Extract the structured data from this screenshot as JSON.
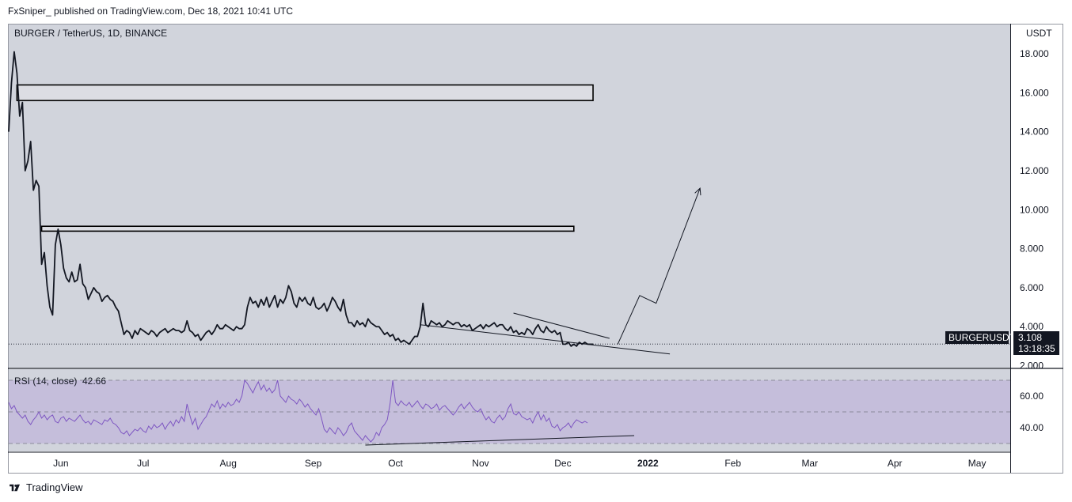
{
  "header": {
    "published_line": "FxSniper_ published on TradingView.com, Dec 18, 2021 10:41 UTC"
  },
  "footer": {
    "brand": "TradingView"
  },
  "colors": {
    "background": "#d1d4dc",
    "price_line": "#131722",
    "rsi_line": "#7e57c2",
    "rsi_band": "#c5bedb",
    "label_bg": "#131722"
  },
  "chart_data": [
    {
      "type": "line",
      "title": "BURGER / TetherUS, 1D, BINANCE",
      "symbol": "BURGERUSDT",
      "axis_unit": "USDT",
      "ylim": [
        1.9,
        19.5
      ],
      "y_ticks": [
        "18.000",
        "16.000",
        "14.000",
        "12.000",
        "10.000",
        "8.000",
        "6.000",
        "4.000",
        "2.000"
      ],
      "y_tick_values": [
        18,
        16,
        14,
        12,
        10,
        8,
        6,
        4,
        2
      ],
      "last_price": "3.108",
      "last_price_value": 3.108,
      "countdown": "13:18:35",
      "series": [
        {
          "values": [
            14.0,
            16.5,
            18.1,
            17.0,
            14.8,
            15.5,
            12.0,
            12.5,
            13.5,
            11.0,
            11.5,
            11.2,
            7.2,
            7.8,
            6.1,
            5.0,
            4.6,
            8.2,
            9.0,
            8.2,
            7.0,
            6.5,
            6.3,
            6.8,
            6.3,
            6.4,
            7.2,
            6.2,
            6.0,
            5.4,
            5.7,
            6.0,
            5.8,
            5.7,
            5.3,
            5.5,
            5.6,
            5.4,
            5.3,
            5.0,
            4.8,
            4.2,
            3.6,
            3.8,
            3.7,
            3.4,
            3.8,
            3.6,
            3.9,
            3.8,
            3.7,
            3.6,
            3.8,
            3.7,
            3.5,
            3.7,
            3.8,
            3.9,
            3.7,
            3.8,
            3.9,
            3.8,
            3.8,
            3.7,
            3.8,
            4.3,
            3.8,
            3.7,
            3.5,
            3.6,
            3.3,
            3.5,
            3.7,
            3.8,
            3.6,
            3.8,
            4.1,
            3.9,
            3.9,
            4.1,
            4.0,
            3.9,
            3.8,
            4.0,
            3.9,
            3.9,
            4.1,
            5.0,
            5.5,
            5.2,
            5.3,
            5.0,
            5.4,
            5.1,
            5.5,
            5.0,
            5.3,
            5.6,
            5.0,
            5.4,
            5.2,
            5.5,
            6.1,
            5.8,
            5.2,
            5.0,
            5.5,
            5.3,
            5.5,
            5.2,
            5.1,
            5.5,
            5.0,
            4.9,
            5.0,
            5.2,
            4.8,
            5.1,
            5.5,
            5.3,
            5.0,
            4.8,
            5.4,
            4.6,
            4.2,
            4.2,
            4.0,
            4.3,
            4.1,
            4.2,
            4.0,
            4.4,
            4.2,
            4.1,
            4.0,
            4.0,
            3.8,
            3.6,
            3.7,
            3.5,
            3.6,
            3.3,
            3.4,
            3.2,
            3.3,
            3.2,
            3.1,
            3.3,
            3.5,
            3.5,
            4.0,
            5.2,
            4.1,
            4.0,
            4.3,
            4.2,
            4.1,
            4.2,
            4.0,
            4.1,
            4.3,
            4.2,
            4.1,
            4.2,
            4.2,
            4.0,
            4.1,
            4.0,
            4.1,
            3.8,
            3.9,
            4.0,
            4.1,
            3.9,
            4.1,
            4.0,
            4.1,
            4.2,
            4.0,
            4.1,
            4.1,
            3.9,
            3.8,
            4.0,
            3.7,
            3.8,
            3.6,
            3.7,
            3.6,
            3.9,
            3.8,
            3.6,
            3.9,
            4.1,
            3.8,
            3.7,
            4.0,
            3.8,
            3.7,
            3.8,
            3.6,
            3.7,
            3.1,
            3.1,
            3.2,
            3.0,
            3.1,
            3.0,
            3.2,
            3.1,
            3.2,
            3.1,
            3.1,
            3.1
          ]
        }
      ],
      "x_tick_labels": [
        "Jun",
        "Jul",
        "Aug",
        "Sep",
        "Oct",
        "Nov",
        "Dec",
        "2022",
        "Feb",
        "Mar",
        "Apr",
        "May"
      ],
      "x_tick_days": [
        19,
        49,
        80,
        111,
        141,
        172,
        202,
        233,
        264,
        292,
        323,
        353
      ],
      "annotations": {
        "boxes": [
          {
            "day_start": 3,
            "day_end": 213,
            "price_low": 15.6,
            "price_high": 16.4
          },
          {
            "day_start": 12,
            "day_end": 206,
            "price_low": 8.9,
            "price_high": 9.15
          }
        ],
        "trendlines": [
          {
            "from": [
              150,
              4.1
            ],
            "to": [
              241,
              2.6
            ]
          },
          {
            "from": [
              184,
              4.7
            ],
            "to": [
              219,
              3.4
            ]
          }
        ],
        "projection": [
          [
            222,
            3.1
          ],
          [
            230,
            5.6
          ],
          [
            236,
            5.2
          ],
          [
            252,
            11.1
          ]
        ]
      },
      "grid": false
    },
    {
      "type": "line",
      "title": "RSI (14, close)",
      "rsi_value": "42.66",
      "ylim": [
        25,
        77
      ],
      "y_ticks": [
        "60.00",
        "40.00"
      ],
      "y_tick_values": [
        60,
        40
      ],
      "band": [
        30,
        70
      ],
      "midline": 50,
      "series": [
        {
          "values": [
            56,
            52,
            54,
            50,
            48,
            46,
            48,
            44,
            42,
            45,
            47,
            50,
            46,
            48,
            45,
            47,
            48,
            44,
            43,
            46,
            47,
            44,
            46,
            45,
            44,
            46,
            48,
            45,
            43,
            44,
            42,
            45,
            44,
            43,
            42,
            45,
            44,
            46,
            43,
            42,
            40,
            37,
            36,
            38,
            35,
            37,
            39,
            38,
            40,
            38,
            37,
            41,
            39,
            42,
            40,
            41,
            43,
            39,
            42,
            44,
            41,
            45,
            43,
            47,
            44,
            55,
            48,
            42,
            46,
            39,
            42,
            45,
            47,
            51,
            55,
            53,
            57,
            52,
            55,
            53,
            56,
            54,
            55,
            58,
            56,
            60,
            70,
            68,
            65,
            62,
            66,
            69,
            64,
            67,
            63,
            65,
            62,
            64,
            70,
            60,
            58,
            56,
            60,
            58,
            57,
            55,
            58,
            56,
            53,
            55,
            52,
            50,
            48,
            52,
            46,
            39,
            37,
            40,
            38,
            36,
            40,
            38,
            35,
            37,
            41,
            43,
            38,
            36,
            34,
            32,
            35,
            33,
            31,
            33,
            37,
            35,
            40,
            42,
            45,
            55,
            70,
            56,
            54,
            57,
            55,
            54,
            56,
            53,
            55,
            57,
            54,
            52,
            55,
            54,
            52,
            53,
            55,
            51,
            53,
            54,
            52,
            50,
            48,
            50,
            53,
            55,
            52,
            54,
            56,
            53,
            51,
            50,
            52,
            48,
            45,
            47,
            44,
            43,
            46,
            48,
            45,
            47,
            52,
            55,
            49,
            48,
            50,
            47,
            46,
            45,
            46,
            43,
            47,
            50,
            45,
            48,
            44,
            46,
            41,
            40,
            42,
            38,
            40,
            41,
            43,
            40,
            43,
            45,
            44,
            43,
            44,
            43
          ]
        }
      ],
      "annotations": {
        "trendlines": [
          {
            "from": [
              130,
              29
            ],
            "to": [
              228,
              35
            ]
          }
        ]
      },
      "grid": false
    }
  ]
}
